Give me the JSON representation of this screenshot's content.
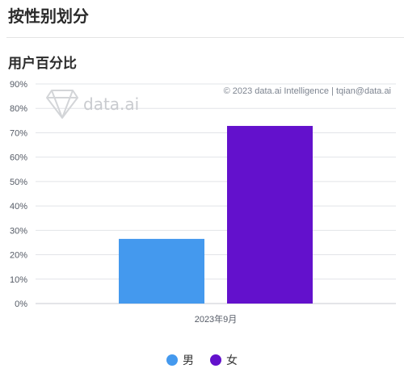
{
  "header": {
    "title": "按性别划分"
  },
  "chart_data": {
    "type": "bar",
    "title": "用户百分比",
    "categories": [
      "2023年9月"
    ],
    "series": [
      {
        "name": "男",
        "values": [
          26.5
        ],
        "color": "#4499ee"
      },
      {
        "name": "女",
        "values": [
          72.8
        ],
        "color": "#6311cc"
      }
    ],
    "ylim": [
      0,
      90
    ],
    "yticks": [
      "0%",
      "10%",
      "20%",
      "30%",
      "40%",
      "50%",
      "60%",
      "70%",
      "80%",
      "90%"
    ],
    "grid": true,
    "legend_position": "bottom-center",
    "credit": "© 2023 data.ai Intelligence | tqian@data.ai",
    "watermark": "data.ai"
  }
}
